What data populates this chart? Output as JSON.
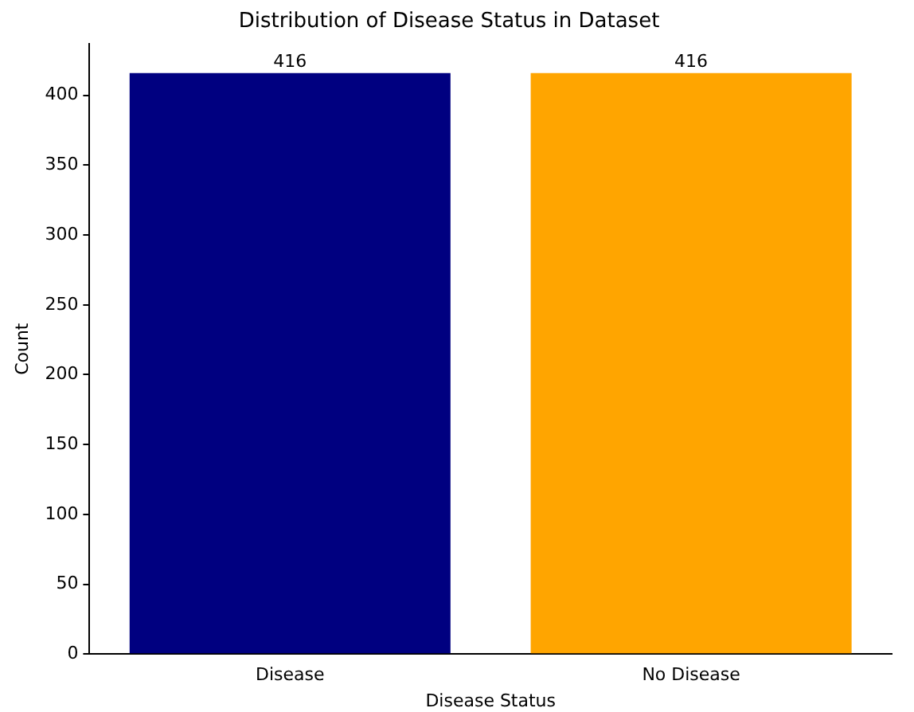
{
  "chart_data": {
    "type": "bar",
    "title": "Distribution of Disease Status in Dataset",
    "xlabel": "Disease Status",
    "ylabel": "Count",
    "categories": [
      "Disease",
      "No Disease"
    ],
    "values": [
      416,
      416
    ],
    "colors": [
      "#000080",
      "#ffa500"
    ],
    "ylim": [
      0,
      436.8
    ],
    "yticks": [
      0,
      50,
      100,
      150,
      200,
      250,
      300,
      350,
      400
    ],
    "data_labels": true,
    "grid": false,
    "legend": false
  }
}
